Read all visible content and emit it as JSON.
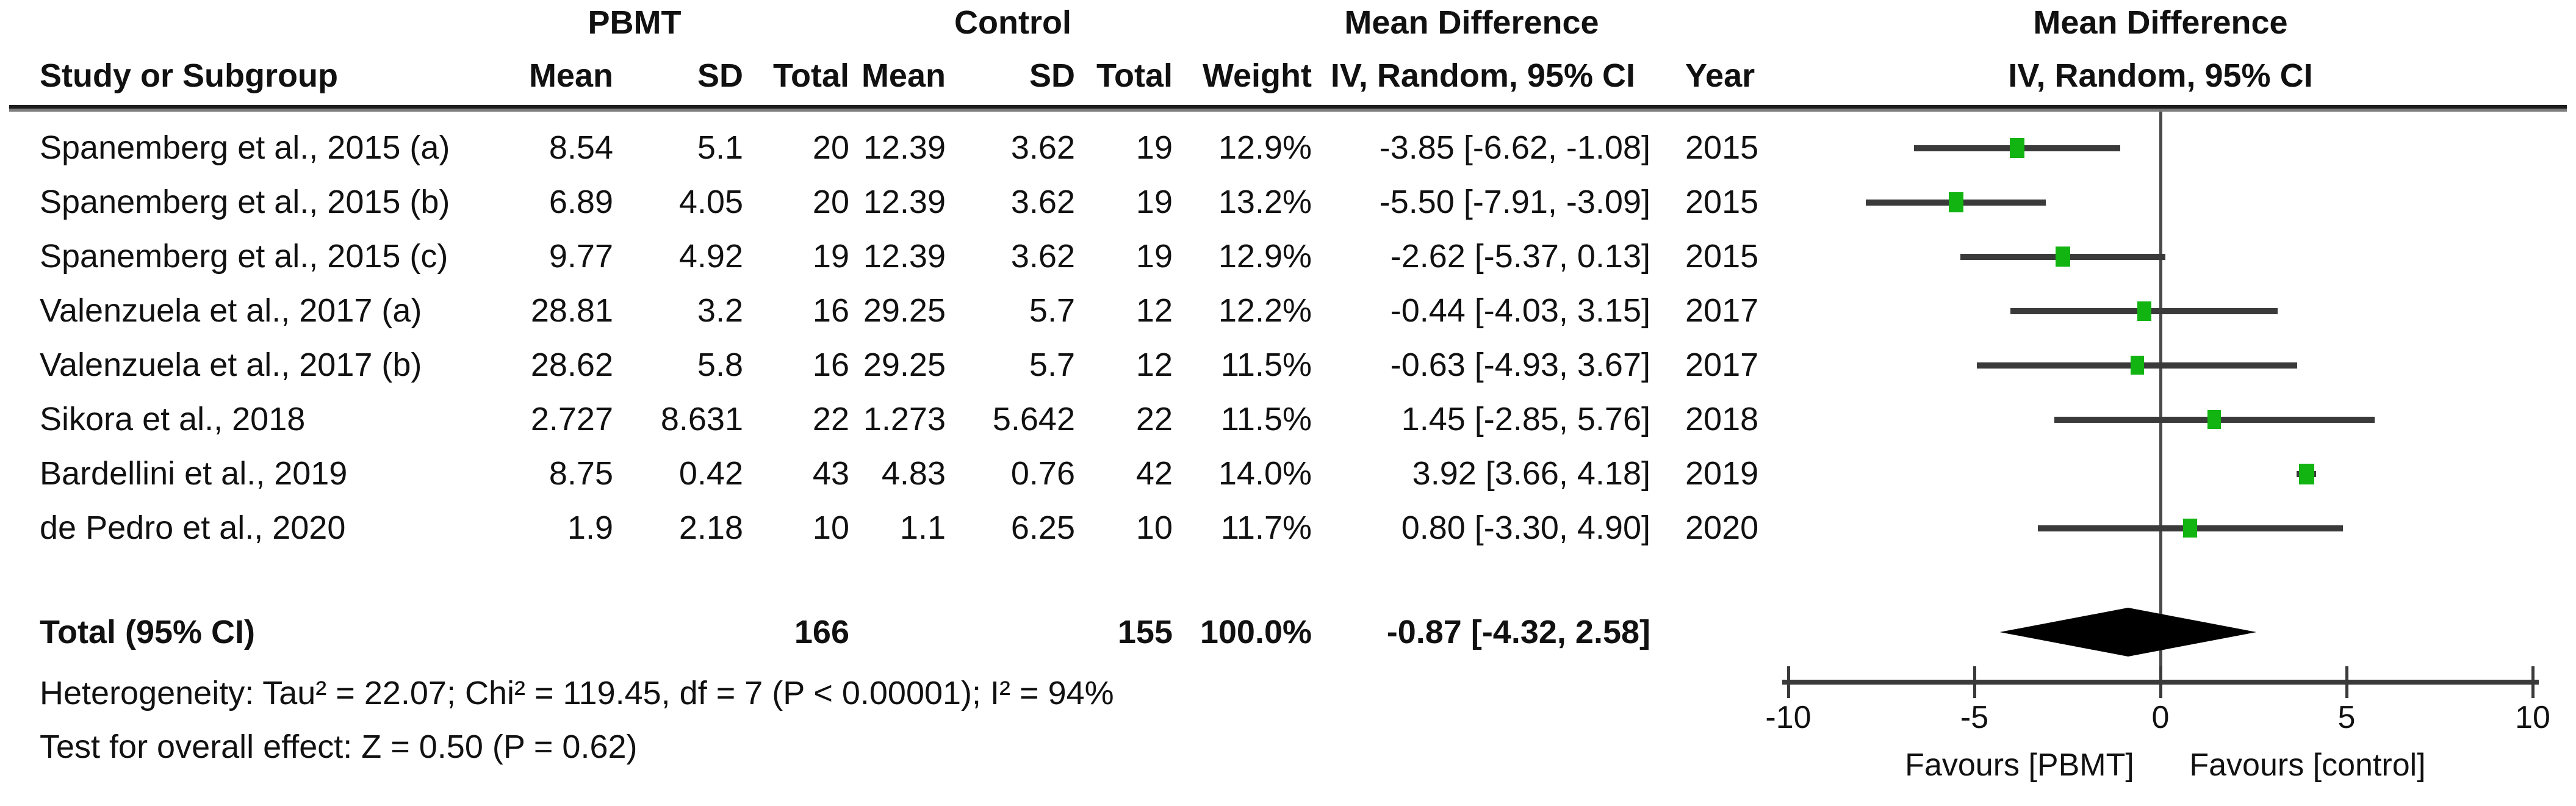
{
  "header": {
    "study_col": "Study or Subgroup",
    "pbmt_group": "PBMT",
    "control_group": "Control",
    "mean_difference": "Mean Difference",
    "mean_col": "Mean",
    "sd_col": "SD",
    "total_col": "Total",
    "weight_col": "Weight",
    "method_col": "IV, Random, 95% CI",
    "year_col": "Year"
  },
  "studies": [
    {
      "name": "Spanemberg et al., 2015 (a)",
      "pbmt": {
        "mean": "8.54",
        "sd": "5.1",
        "total": "20"
      },
      "control": {
        "mean": "12.39",
        "sd": "3.62",
        "total": "19"
      },
      "weight": "12.9%",
      "ci_text": "-3.85 [-6.62, -1.08]",
      "year": "2015"
    },
    {
      "name": "Spanemberg et al., 2015 (b)",
      "pbmt": {
        "mean": "6.89",
        "sd": "4.05",
        "total": "20"
      },
      "control": {
        "mean": "12.39",
        "sd": "3.62",
        "total": "19"
      },
      "weight": "13.2%",
      "ci_text": "-5.50 [-7.91, -3.09]",
      "year": "2015"
    },
    {
      "name": "Spanemberg et al., 2015 (c)",
      "pbmt": {
        "mean": "9.77",
        "sd": "4.92",
        "total": "19"
      },
      "control": {
        "mean": "12.39",
        "sd": "3.62",
        "total": "19"
      },
      "weight": "12.9%",
      "ci_text": "-2.62 [-5.37, 0.13]",
      "year": "2015"
    },
    {
      "name": "Valenzuela et al., 2017 (a)",
      "pbmt": {
        "mean": "28.81",
        "sd": "3.2",
        "total": "16"
      },
      "control": {
        "mean": "29.25",
        "sd": "5.7",
        "total": "12"
      },
      "weight": "12.2%",
      "ci_text": "-0.44 [-4.03, 3.15]",
      "year": "2017"
    },
    {
      "name": "Valenzuela et al., 2017 (b)",
      "pbmt": {
        "mean": "28.62",
        "sd": "5.8",
        "total": "16"
      },
      "control": {
        "mean": "29.25",
        "sd": "5.7",
        "total": "12"
      },
      "weight": "11.5%",
      "ci_text": "-0.63 [-4.93, 3.67]",
      "year": "2017"
    },
    {
      "name": "Sikora et al., 2018",
      "pbmt": {
        "mean": "2.727",
        "sd": "8.631",
        "total": "22"
      },
      "control": {
        "mean": "1.273",
        "sd": "5.642",
        "total": "22"
      },
      "weight": "11.5%",
      "ci_text": "1.45 [-2.85, 5.76]",
      "year": "2018"
    },
    {
      "name": "Bardellini et al., 2019",
      "pbmt": {
        "mean": "8.75",
        "sd": "0.42",
        "total": "43"
      },
      "control": {
        "mean": "4.83",
        "sd": "0.76",
        "total": "42"
      },
      "weight": "14.0%",
      "ci_text": "3.92 [3.66, 4.18]",
      "year": "2019"
    },
    {
      "name": "de Pedro et al., 2020",
      "pbmt": {
        "mean": "1.9",
        "sd": "2.18",
        "total": "10"
      },
      "control": {
        "mean": "1.1",
        "sd": "6.25",
        "total": "10"
      },
      "weight": "11.7%",
      "ci_text": "0.80 [-3.30, 4.90]",
      "year": "2020"
    }
  ],
  "total": {
    "label": "Total (95% CI)",
    "pbmt_total": "166",
    "control_total": "155",
    "weight": "100.0%",
    "ci_text": "-0.87 [-4.32, 2.58]"
  },
  "footer": {
    "heterogeneity": "Heterogeneity: Tau² = 22.07; Chi² = 119.45, df = 7 (P < 0.00001); I² = 94%",
    "overall_effect": "Test for overall effect: Z = 0.50 (P = 0.62)"
  },
  "colors": {
    "square": "#12b412",
    "ci_line": "#3a3a3a",
    "diamond": "#000000",
    "axis": "#3a3a3a",
    "zero_line": "#4a4a4a"
  },
  "chart_data": {
    "type": "scatter",
    "title": "Mean Difference, IV, Random, 95% CI (forest plot)",
    "categories": [
      "Spanemberg et al., 2015 (a)",
      "Spanemberg et al., 2015 (b)",
      "Spanemberg et al., 2015 (c)",
      "Valenzuela et al., 2017 (a)",
      "Valenzuela et al., 2017 (b)",
      "Sikora et al., 2018",
      "Bardellini et al., 2019",
      "de Pedro et al., 2020"
    ],
    "estimates": [
      -3.85,
      -5.5,
      -2.62,
      -0.44,
      -0.63,
      1.45,
      3.92,
      0.8
    ],
    "ci_lower": [
      -6.62,
      -7.91,
      -5.37,
      -4.03,
      -4.93,
      -2.85,
      3.66,
      -3.3
    ],
    "ci_upper": [
      -1.08,
      -3.09,
      0.13,
      3.15,
      3.67,
      5.76,
      4.18,
      4.9
    ],
    "weights_pct": [
      12.9,
      13.2,
      12.9,
      12.2,
      11.5,
      11.5,
      14.0,
      11.7
    ],
    "years": [
      2015,
      2015,
      2015,
      2017,
      2017,
      2018,
      2019,
      2020
    ],
    "summary": {
      "label": "Total (95% CI)",
      "estimate": -0.87,
      "ci_lower": -4.32,
      "ci_upper": 2.58
    },
    "xlim": [
      -10,
      10
    ],
    "xticks": [
      -10,
      -5,
      0,
      5,
      10
    ],
    "zero_line": 0,
    "favours_left": "Favours [PBMT]",
    "favours_right": "Favours [control]",
    "grid": false,
    "legend": false
  }
}
